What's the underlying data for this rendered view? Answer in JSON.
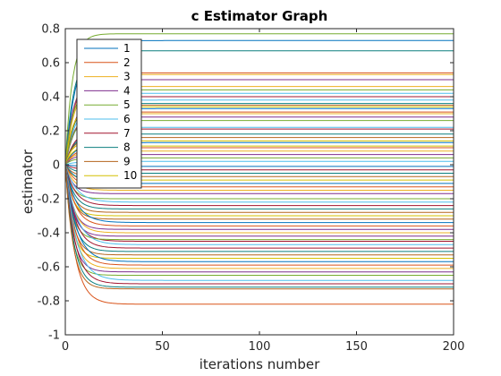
{
  "chart_data": {
    "type": "line",
    "title": "c Estimator Graph",
    "xlabel": "iterations number",
    "ylabel": "estimator",
    "xlim": [
      0,
      200
    ],
    "ylim": [
      -1,
      0.8
    ],
    "xticks": [
      "0",
      "50",
      "100",
      "150",
      "200"
    ],
    "yticks": [
      "-1",
      "-0.8",
      "-0.6",
      "-0.4",
      "-0.2",
      "0",
      "0.2",
      "0.4",
      "0.6",
      "0.8"
    ],
    "grid": false,
    "legend": {
      "placement": "top-left",
      "entries": [
        "1",
        "2",
        "3",
        "4",
        "5",
        "6",
        "7",
        "8",
        "9",
        "10"
      ]
    },
    "curve_model": "exponential convergence from 0 to a steady-state value, settling by ~20 iterations",
    "palette": [
      "#0072BD",
      "#D95319",
      "#EDB120",
      "#7E2F8E",
      "#77AC30",
      "#4DBEEE",
      "#A2142F",
      "#0B7F7F",
      "#B5651D",
      "#D4C000"
    ],
    "series": [
      {
        "name": "1",
        "final": -0.01
      },
      {
        "name": "2",
        "final": -0.82
      },
      {
        "name": "3",
        "final": 0.46
      },
      {
        "name": "4",
        "final": -0.38
      },
      {
        "name": "5",
        "final": 0.77
      },
      {
        "name": "6",
        "final": 0.38
      },
      {
        "name": "7",
        "final": -0.45
      },
      {
        "name": "8",
        "final": 0.67
      },
      {
        "name": "9",
        "final": -0.32
      },
      {
        "name": "10",
        "final": 0.11
      },
      {
        "final": 0.73
      },
      {
        "final": 0.54
      },
      {
        "final": 0.53
      },
      {
        "final": 0.5
      },
      {
        "final": 0.44
      },
      {
        "final": 0.42
      },
      {
        "final": 0.4
      },
      {
        "final": 0.36
      },
      {
        "final": 0.35
      },
      {
        "final": 0.34
      },
      {
        "final": 0.33
      },
      {
        "final": 0.31
      },
      {
        "final": 0.3
      },
      {
        "final": 0.28
      },
      {
        "final": 0.26
      },
      {
        "final": 0.22
      },
      {
        "final": 0.21
      },
      {
        "final": 0.18
      },
      {
        "final": 0.16
      },
      {
        "final": 0.14
      },
      {
        "final": 0.13
      },
      {
        "final": 0.1
      },
      {
        "final": 0.08
      },
      {
        "final": 0.06
      },
      {
        "final": 0.04
      },
      {
        "final": 0.02
      },
      {
        "final": -0.03
      },
      {
        "final": -0.05
      },
      {
        "final": -0.07
      },
      {
        "final": -0.09
      },
      {
        "final": -0.11
      },
      {
        "final": -0.13
      },
      {
        "final": -0.15
      },
      {
        "final": -0.17
      },
      {
        "final": -0.2
      },
      {
        "final": -0.22
      },
      {
        "final": -0.24
      },
      {
        "final": -0.26
      },
      {
        "final": -0.28
      },
      {
        "final": -0.3
      },
      {
        "final": -0.34
      },
      {
        "final": -0.36
      },
      {
        "final": -0.4
      },
      {
        "final": -0.42
      },
      {
        "final": -0.44
      },
      {
        "final": -0.47
      },
      {
        "final": -0.49
      },
      {
        "final": -0.51
      },
      {
        "final": -0.53
      },
      {
        "final": -0.55
      },
      {
        "final": -0.57
      },
      {
        "final": -0.59
      },
      {
        "final": -0.61
      },
      {
        "final": -0.63
      },
      {
        "final": -0.65
      },
      {
        "final": -0.68
      },
      {
        "final": -0.7
      },
      {
        "final": -0.72
      },
      {
        "final": -0.73
      }
    ]
  }
}
